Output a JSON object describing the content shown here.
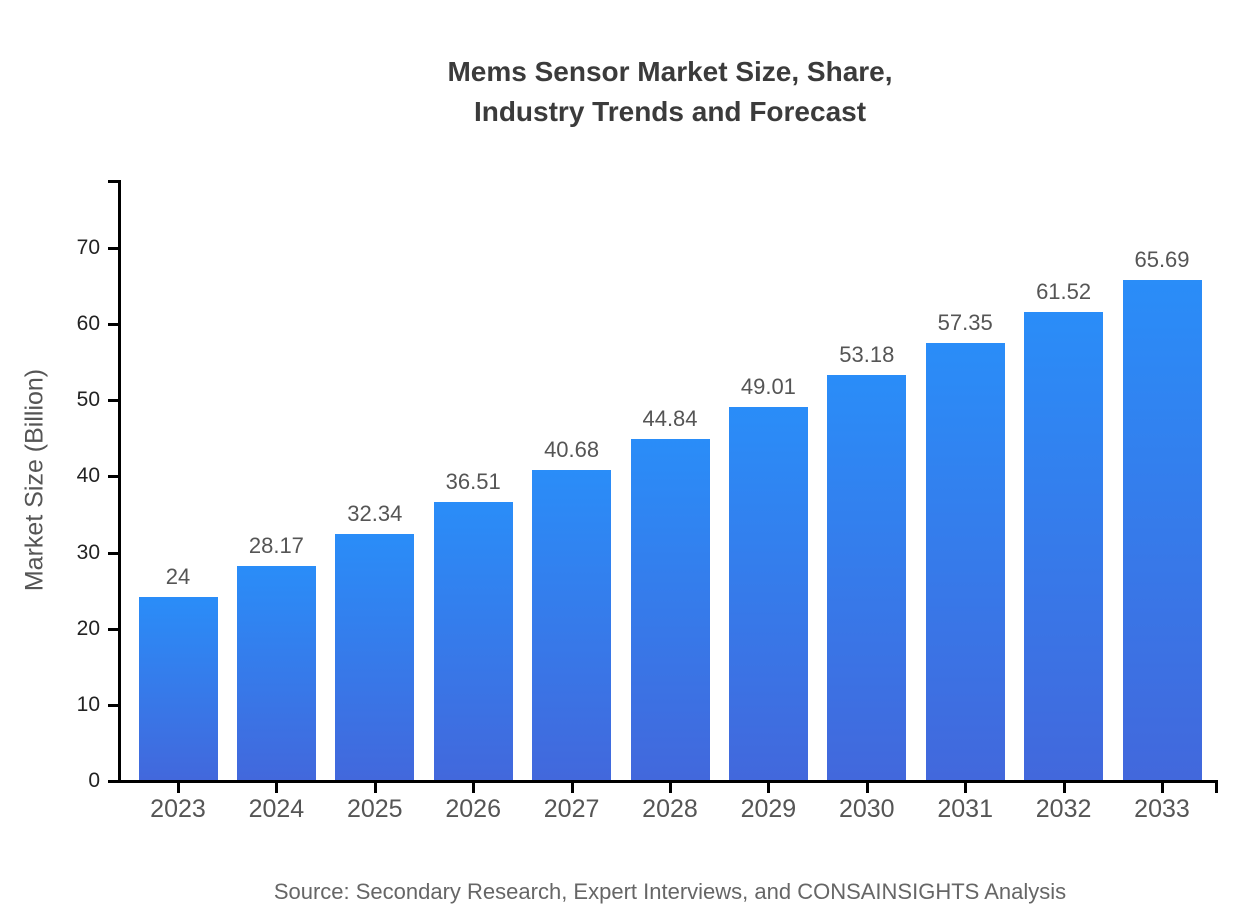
{
  "page": {
    "background": "#ffffff"
  },
  "chart_data": {
    "type": "bar",
    "title": "Mems Sensor Market Size, Share, Industry Trends and Forecast",
    "title_lines": [
      "Mems Sensor Market Size, Share,",
      "Industry Trends and Forecast"
    ],
    "ylabel": "Market Size (Billion)",
    "xlabel": "",
    "categories": [
      "2023",
      "2024",
      "2025",
      "2026",
      "2027",
      "2028",
      "2029",
      "2030",
      "2031",
      "2032",
      "2033"
    ],
    "values": [
      24,
      28.17,
      32.34,
      36.51,
      40.68,
      44.84,
      49.01,
      53.18,
      57.35,
      61.52,
      65.69
    ],
    "value_labels": [
      "24",
      "28.17",
      "32.34",
      "36.51",
      "40.68",
      "44.84",
      "49.01",
      "53.18",
      "57.35",
      "61.52",
      "65.69"
    ],
    "yticks": [
      0,
      10,
      20,
      30,
      40,
      50,
      60,
      70
    ],
    "ylim": [
      0,
      78.8
    ],
    "grid": false,
    "legend_position": "none",
    "source_note": "Source: Secondary Research, Expert Interviews, and CONSAINSIGHTS Analysis",
    "colors": {
      "bar_gradient_top": "#2A8DF8",
      "bar_gradient_bottom": "#4268DC",
      "axis": "#000000",
      "ytick_label": "#222222",
      "xtick_label": "#555555",
      "value_label": "#555555",
      "axis_label": "#555555",
      "title": "#3B3B3B",
      "source": "#666666"
    }
  }
}
